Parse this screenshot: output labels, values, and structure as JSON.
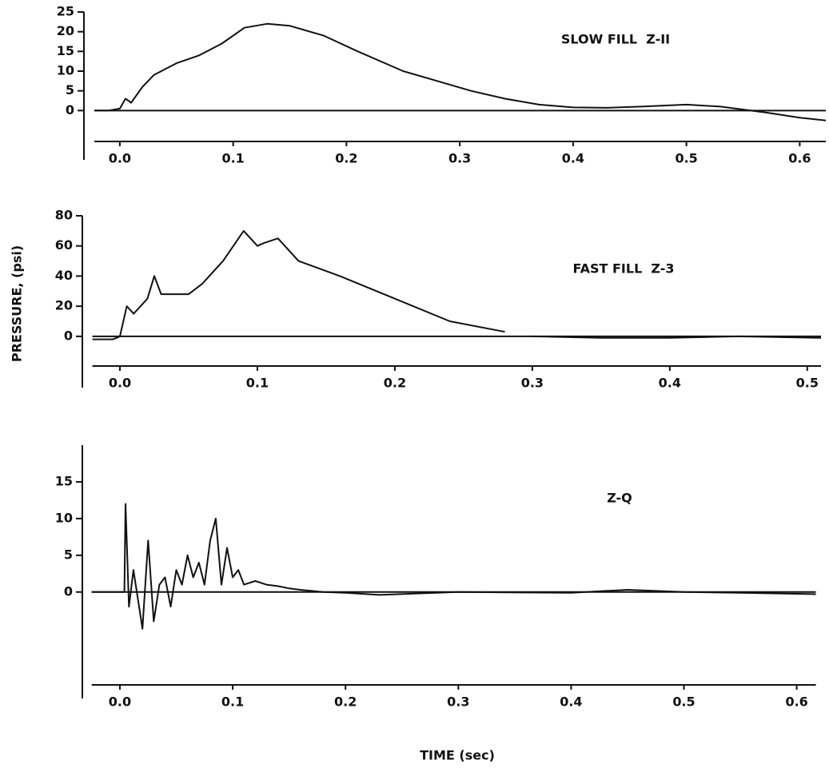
{
  "chart_data": [
    {
      "type": "line",
      "title": "SLOW FILL  Z-II",
      "color": "#111111",
      "x": [
        -0.0225,
        -0.01,
        0.0,
        0.005,
        0.01,
        0.02,
        0.03,
        0.05,
        0.07,
        0.09,
        0.11,
        0.13,
        0.15,
        0.18,
        0.21,
        0.25,
        0.28,
        0.31,
        0.34,
        0.37,
        0.4,
        0.43,
        0.46,
        0.5,
        0.53,
        0.57,
        0.6,
        0.623
      ],
      "values": [
        0,
        0,
        0.5,
        3,
        2,
        6,
        9,
        12,
        14,
        17,
        21,
        22,
        21.5,
        19,
        15,
        10,
        7.5,
        5,
        3,
        1.5,
        0.8,
        0.7,
        1,
        1.5,
        1,
        -0.5,
        -1.8,
        -2.5
      ],
      "xlim": [
        -0.0225,
        0.623
      ],
      "ylim": [
        -12.5,
        25
      ],
      "xticks": [
        {
          "value": 0,
          "label": "0.0"
        },
        0.1,
        0.2,
        0.3,
        0.4,
        0.5,
        0.6
      ],
      "yticks": [
        0,
        5,
        10,
        15,
        20,
        25
      ]
    },
    {
      "type": "line",
      "title": "FAST FILL  Z-3",
      "y_label": "PRESSURE, (psi)",
      "color": "#111111",
      "x": [
        -0.02,
        -0.005,
        0.0,
        0.005,
        0.01,
        0.02,
        0.025,
        0.03,
        0.04,
        0.05,
        0.06,
        0.075,
        0.09,
        0.1,
        0.105,
        0.115,
        0.13,
        0.16,
        0.2,
        0.24,
        0.28,
        null,
        0.3,
        0.35,
        0.4,
        0.45,
        0.51
      ],
      "values": [
        -2,
        -2,
        0,
        20,
        15,
        25,
        40,
        28,
        28,
        28,
        35,
        50,
        70,
        60,
        62,
        65,
        50,
        40,
        25,
        10,
        3,
        null,
        0,
        -1,
        -1,
        0,
        -1
      ],
      "xlim": [
        -0.02,
        0.51
      ],
      "ylim": [
        -34,
        80
      ],
      "xticks": [
        {
          "value": 0,
          "label": "0.0"
        },
        0.1,
        0.2,
        0.3,
        0.4,
        0.5
      ],
      "yticks": [
        0,
        20,
        40,
        60,
        80
      ]
    },
    {
      "type": "line",
      "title": "Z-Q",
      "x_label": "TIME (sec)",
      "color": "#111111",
      "x": [
        -0.025,
        0.0,
        0.004,
        0.005,
        0.008,
        0.012,
        0.018,
        0.02,
        0.025,
        0.03,
        0.035,
        0.04,
        0.045,
        0.05,
        0.055,
        0.06,
        0.065,
        0.07,
        0.075,
        0.08,
        0.085,
        0.09,
        0.095,
        0.1,
        0.105,
        0.11,
        0.12,
        0.13,
        0.14,
        0.15,
        0.16,
        0.18,
        0.2,
        0.23,
        0.3,
        0.4,
        0.45,
        0.5,
        0.55,
        0.617
      ],
      "values": [
        0,
        0,
        0,
        12,
        -2,
        3,
        -3,
        -5,
        7,
        -4,
        1,
        2,
        -2,
        3,
        1,
        5,
        2,
        4,
        1,
        7,
        10,
        1,
        6,
        2,
        3,
        1,
        1.5,
        1,
        0.8,
        0.5,
        0.3,
        0,
        -0.1,
        -0.4,
        0,
        -0.1,
        0.3,
        0,
        -0.1,
        -0.3
      ],
      "xlim": [
        -0.025,
        0.617
      ],
      "ylim": [
        -14.5,
        20
      ],
      "xticks": [
        {
          "value": 0,
          "label": "0.0"
        },
        0.1,
        0.2,
        0.3,
        0.4,
        0.5,
        0.6
      ],
      "yticks": [
        0,
        5,
        10,
        15
      ]
    }
  ]
}
